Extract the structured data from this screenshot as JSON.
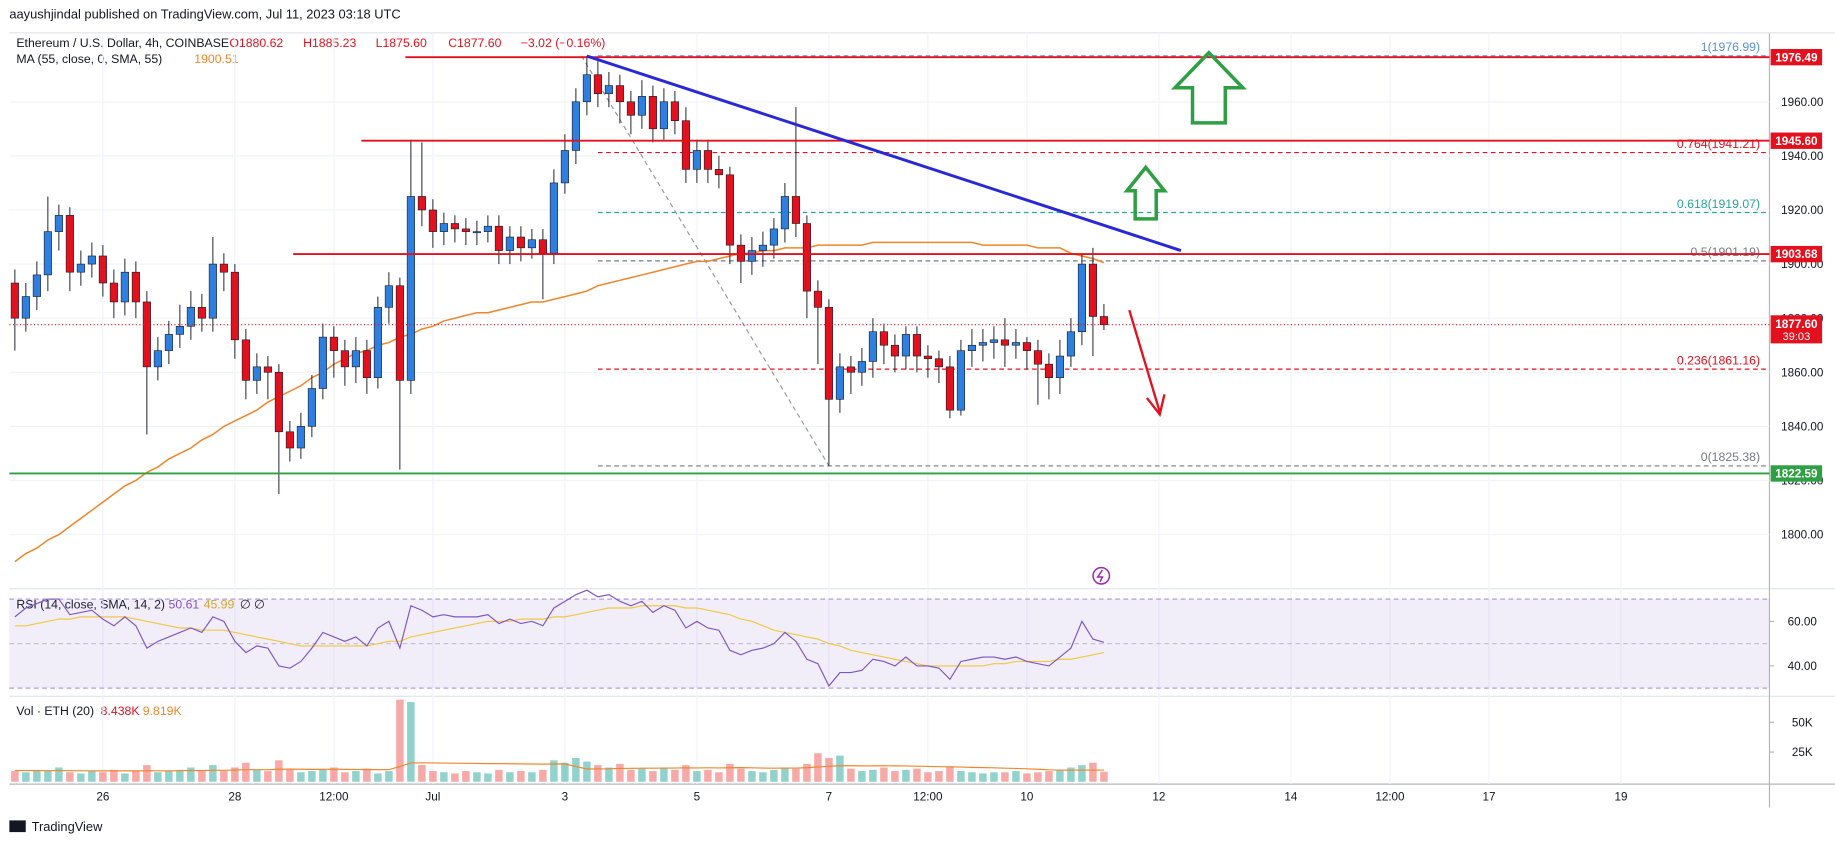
{
  "chart_data": {
    "type": "candlestick",
    "attribution": "aayushjindal published on TradingView.com, Jul 11, 2023 03:18 UTC",
    "title": "Ethereum / U.S. Dollar, 4h, COINBASE",
    "ohlc": [
      "O1880.62",
      "H1885.23",
      "L1875.60",
      "C1877.60",
      "−3.02 (−0.16%)"
    ],
    "brand": "TradingView",
    "up_color": "#2f7fe0",
    "down_color": "#e3111e",
    "xlim": [
      -0.5,
      159.5
    ],
    "xticks": [
      {
        "value": 8,
        "label": "26"
      },
      {
        "value": 20,
        "label": "28"
      },
      {
        "value": 29,
        "label": "12:00"
      },
      {
        "value": 38,
        "label": "Jul"
      },
      {
        "value": 50,
        "label": "3"
      },
      {
        "value": 62,
        "label": "5"
      },
      {
        "value": 74,
        "label": "7"
      },
      {
        "value": 83,
        "label": "12:00"
      },
      {
        "value": 92,
        "label": "10"
      },
      {
        "value": 104,
        "label": "12"
      },
      {
        "value": 116,
        "label": "14"
      },
      {
        "value": 125,
        "label": "12:00"
      },
      {
        "value": 134,
        "label": "17"
      },
      {
        "value": 146,
        "label": "19"
      }
    ],
    "ylim": [
      1780,
      1985.5
    ],
    "yticks": [
      {
        "value": 1800,
        "label": "1800.00"
      },
      {
        "value": 1820,
        "label": "1820.00"
      },
      {
        "value": 1840,
        "label": "1840.00"
      },
      {
        "value": 1860,
        "label": "1860.00"
      },
      {
        "value": 1880,
        "label": "1880.00"
      },
      {
        "value": 1900,
        "label": "1900.00"
      },
      {
        "value": 1920,
        "label": "1920.00"
      },
      {
        "value": 1940,
        "label": "1940.00"
      },
      {
        "value": 1960,
        "label": "1960.00"
      }
    ],
    "grid": true,
    "open": [
      1893,
      1880,
      1888,
      1896,
      1912,
      1918,
      1897,
      1900,
      1903,
      1893,
      1886,
      1897,
      1886,
      1862,
      1868,
      1874,
      1877,
      1884,
      1880,
      1900,
      1897,
      1872,
      1857,
      1862,
      1860,
      1838,
      1832,
      1840,
      1854,
      1873,
      1868,
      1862,
      1868,
      1858,
      1884,
      1892,
      1857,
      1925,
      1920,
      1912,
      1915,
      1913,
      1912,
      1912,
      1914,
      1905,
      1910,
      1906,
      1909,
      1904,
      1930,
      1942,
      1960,
      1970,
      1963,
      1966,
      1960,
      1955,
      1962,
      1950,
      1960,
      1953,
      1935,
      1942,
      1935,
      1933,
      1907,
      1901,
      1905,
      1907,
      1913,
      1925,
      1915,
      1890,
      1884,
      1850,
      1862,
      1860,
      1864,
      1875,
      1870,
      1866,
      1874,
      1866,
      1865,
      1862,
      1846,
      1868,
      1870,
      1871,
      1872,
      1870,
      1871,
      1868,
      1863,
      1858,
      1866,
      1875,
      1900,
      1880.62
    ],
    "high": [
      1898,
      1893,
      1901,
      1925,
      1922,
      1921,
      1905,
      1908,
      1907,
      1898,
      1902,
      1901,
      1890,
      1873,
      1879,
      1885,
      1890,
      1889,
      1910,
      1904,
      1900,
      1876,
      1867,
      1866,
      1863,
      1842,
      1845,
      1859,
      1878,
      1877,
      1872,
      1873,
      1872,
      1888,
      1897,
      1895,
      1946,
      1945,
      1924,
      1919,
      1918,
      1917,
      1916,
      1918,
      1918,
      1914,
      1914,
      1913,
      1913,
      1935,
      1948,
      1965,
      1976.99,
      1975,
      1971,
      1970,
      1964,
      1968,
      1966,
      1965,
      1964,
      1958,
      1946,
      1946,
      1940,
      1936,
      1911,
      1910,
      1912,
      1917,
      1930,
      1958,
      1918,
      1894,
      1887,
      1867,
      1866,
      1869,
      1880,
      1878,
      1874,
      1877,
      1877,
      1870,
      1868,
      1866,
      1872,
      1876,
      1876,
      1877,
      1880,
      1876,
      1873,
      1872,
      1867,
      1872,
      1880,
      1904,
      1906,
      1885.23
    ],
    "low": [
      1868,
      1875,
      1883,
      1890,
      1905,
      1890,
      1892,
      1895,
      1888,
      1880,
      1881,
      1880,
      1837,
      1857,
      1863,
      1869,
      1872,
      1875,
      1875,
      1890,
      1865,
      1850,
      1852,
      1850,
      1815,
      1827,
      1828,
      1836,
      1850,
      1858,
      1855,
      1856,
      1852,
      1854,
      1878,
      1824,
      1852,
      1914,
      1906,
      1907,
      1908,
      1907,
      1907,
      1908,
      1900,
      1900,
      1901,
      1902,
      1887,
      1900,
      1926,
      1937,
      1955,
      1958,
      1958,
      1952,
      1948,
      1950,
      1945,
      1946,
      1948,
      1930,
      1930,
      1930,
      1928,
      1900,
      1893,
      1896,
      1899,
      1902,
      1908,
      1910,
      1880,
      1863,
      1825.38,
      1845,
      1852,
      1855,
      1858,
      1863,
      1860,
      1861,
      1860,
      1858,
      1856,
      1843,
      1844,
      1862,
      1864,
      1865,
      1862,
      1865,
      1861,
      1848,
      1850,
      1852,
      1862,
      1870,
      1866,
      1875.6
    ],
    "close": [
      1880,
      1888,
      1896,
      1912,
      1918,
      1897,
      1900,
      1903,
      1893,
      1886,
      1897,
      1886,
      1862,
      1868,
      1874,
      1877,
      1884,
      1880,
      1900,
      1897,
      1872,
      1857,
      1862,
      1860,
      1838,
      1832,
      1840,
      1854,
      1873,
      1868,
      1862,
      1868,
      1858,
      1884,
      1892,
      1857,
      1925,
      1920,
      1912,
      1915,
      1913,
      1912,
      1912,
      1914,
      1905,
      1910,
      1906,
      1909,
      1904,
      1930,
      1942,
      1960,
      1970,
      1963,
      1966,
      1960,
      1955,
      1962,
      1950,
      1960,
      1953,
      1935,
      1942,
      1935,
      1933,
      1907,
      1901,
      1905,
      1907,
      1913,
      1925,
      1915,
      1890,
      1884,
      1850,
      1862,
      1860,
      1864,
      1875,
      1870,
      1866,
      1874,
      1866,
      1865,
      1862,
      1846,
      1868,
      1870,
      1871,
      1872,
      1870,
      1871,
      1868,
      1863,
      1858,
      1866,
      1875,
      1900,
      1880.62,
      1877.6
    ],
    "last_price_label": "1877.60",
    "countdown": "39:03",
    "ma": {
      "label": "MA (55, close, 0, SMA, 55)",
      "color": "#f0862c",
      "values": [
        1790,
        1793,
        1795,
        1798,
        1800,
        1803,
        1806,
        1809,
        1812,
        1815,
        1818,
        1820,
        1823,
        1825,
        1828,
        1830,
        1832,
        1835,
        1837,
        1840,
        1842,
        1844,
        1846,
        1849,
        1851,
        1853,
        1855,
        1858,
        1860,
        1863,
        1865,
        1867,
        1868,
        1870,
        1871,
        1873,
        1874,
        1876,
        1877,
        1879,
        1880,
        1881,
        1882,
        1882,
        1883,
        1884,
        1885,
        1886,
        1886,
        1887,
        1888,
        1889,
        1890,
        1892,
        1893,
        1894,
        1895,
        1896,
        1897,
        1898,
        1899,
        1900,
        1901,
        1901,
        1902,
        1903,
        1904,
        1904,
        1905,
        1905,
        1906,
        1906,
        1906,
        1907,
        1907,
        1907,
        1907,
        1907,
        1908,
        1908,
        1908,
        1908,
        1908,
        1908,
        1908,
        1908,
        1908,
        1908,
        1907,
        1907,
        1907,
        1907,
        1907,
        1906,
        1906,
        1906,
        1904,
        1903,
        1902,
        1900.51
      ]
    },
    "levels": [
      {
        "price": 1976.49,
        "label": "1976.49",
        "color": "#e3111e",
        "from": 35.5
      },
      {
        "price": 1945.6,
        "label": "1945.60",
        "color": "#e3111e",
        "from": 31.5
      },
      {
        "price": 1903.68,
        "label": "1903.68",
        "color": "#e3111e",
        "from": 25.3
      },
      {
        "price": 1822.59,
        "label": "1822.59",
        "color": "#2ea043",
        "from": -0.5
      }
    ],
    "fib_from": 53,
    "fib_levels": [
      {
        "price": 1976.99,
        "label": "1(1976.99)",
        "color": "#5b8fd4"
      },
      {
        "price": 1941.21,
        "label": "0.764(1941.21)",
        "color": "#e3111e"
      },
      {
        "price": 1919.07,
        "label": "0.618(1919.07)",
        "color": "#26a69a"
      },
      {
        "price": 1901.19,
        "label": "0.5(1901.19)",
        "color": "#787b86"
      },
      {
        "price": 1861.16,
        "label": "0.236(1861.16)",
        "color": "#e3111e"
      },
      {
        "price": 1825.38,
        "label": "0(1825.38)",
        "color": "#787b86"
      }
    ],
    "trendline": {
      "from": [
        52,
        1976.9
      ],
      "to": [
        106,
        1905
      ],
      "color": "#2828d8"
    },
    "rsi": {
      "label": "RSI (14, close, SMA, 14, 2)",
      "color": "#7e57c2",
      "ma_color": "#f2c744",
      "extra": "∅ ∅",
      "ylim": [
        26.3,
        74.7
      ],
      "yticks": [
        {
          "value": 40,
          "label": "40.00"
        },
        {
          "value": 60,
          "label": "60.00"
        }
      ],
      "bands": [
        30,
        70
      ],
      "midline": 50,
      "values": [
        62,
        66,
        68,
        70,
        70,
        63,
        64,
        65,
        61,
        58,
        62,
        58,
        48,
        51,
        53,
        55,
        57,
        55,
        62,
        60,
        51,
        46,
        49,
        48,
        40,
        39,
        42,
        48,
        55,
        53,
        51,
        53,
        49,
        57,
        60,
        48,
        67,
        65,
        62,
        63,
        62,
        62,
        62,
        63,
        59,
        61,
        59,
        60,
        58,
        66,
        69,
        72,
        74,
        71,
        72,
        69,
        67,
        69,
        64,
        67,
        65,
        57,
        60,
        57,
        56,
        47,
        45,
        47,
        48,
        50,
        55,
        51,
        43,
        41,
        31,
        37,
        37,
        38,
        43,
        42,
        40,
        44,
        40,
        40,
        39,
        34,
        42,
        43,
        44,
        44,
        43,
        44,
        42,
        41,
        40,
        44,
        48,
        60,
        52,
        50.61
      ],
      "ma_values": [
        58,
        58,
        59,
        60,
        61,
        61,
        62,
        62,
        62,
        62,
        62,
        61,
        60,
        59,
        58,
        57,
        57,
        56,
        56,
        56,
        55,
        54,
        53,
        52,
        51,
        50,
        49,
        49,
        49,
        49,
        49,
        49,
        49,
        50,
        51,
        51,
        53,
        54,
        55,
        56,
        57,
        58,
        59,
        60,
        60,
        60,
        61,
        61,
        61,
        62,
        62,
        63,
        64,
        65,
        66,
        66,
        66,
        67,
        67,
        67,
        67,
        66,
        66,
        65,
        64,
        63,
        61,
        60,
        58,
        56,
        55,
        54,
        53,
        52,
        50,
        49,
        47,
        46,
        45,
        44,
        43,
        42,
        41,
        40,
        40,
        40,
        40,
        40,
        40,
        41,
        41,
        42,
        42,
        42,
        42,
        43,
        43,
        44,
        45,
        45.99
      ]
    },
    "volume": {
      "label": "Vol · ETH (20)",
      "legend_value_label": "8.438K",
      "ma_legend_label": "9.819K",
      "ma_color": "#f0862c",
      "ylim": [
        0,
        69800
      ],
      "yticks": [
        {
          "value": 25000,
          "label": "25K"
        },
        {
          "value": 50000,
          "label": "50K"
        }
      ],
      "values": [
        9000,
        8000,
        10000,
        9000,
        12000,
        8000,
        7000,
        9000,
        8000,
        10000,
        7000,
        9000,
        14000,
        8000,
        9000,
        10000,
        12000,
        9000,
        14000,
        9000,
        12000,
        16000,
        10000,
        9000,
        18000,
        11000,
        8000,
        9000,
        10000,
        12000,
        8000,
        9000,
        11000,
        7000,
        9000,
        69000,
        67000,
        14000,
        9000,
        8000,
        7000,
        9000,
        8000,
        7000,
        10000,
        8000,
        9000,
        8000,
        10000,
        18000,
        16000,
        20000,
        17000,
        14000,
        12000,
        15000,
        10000,
        11000,
        9000,
        12000,
        10000,
        14000,
        9000,
        10000,
        8000,
        15000,
        11000,
        9000,
        8000,
        10000,
        12000,
        11000,
        15000,
        24000,
        20000,
        22000,
        11000,
        9000,
        10000,
        12000,
        9000,
        10000,
        11000,
        8000,
        9000,
        13000,
        9000,
        8000,
        7000,
        8000,
        8000,
        9000,
        7000,
        8000,
        9000,
        10000,
        12000,
        14000,
        16000,
        8438
      ],
      "ma_values": [
        9500,
        9400,
        9400,
        9300,
        9400,
        9300,
        9200,
        9200,
        9100,
        9200,
        9100,
        9100,
        9300,
        9200,
        9200,
        9300,
        9400,
        9400,
        9600,
        9600,
        9800,
        10100,
        10100,
        10100,
        10500,
        10600,
        10500,
        10400,
        10400,
        10500,
        10400,
        10300,
        10300,
        10200,
        10100,
        12900,
        15800,
        15900,
        15800,
        15700,
        15600,
        15500,
        15400,
        15200,
        15200,
        15100,
        15000,
        14900,
        14800,
        14900,
        15000,
        12900,
        10700,
        10800,
        10900,
        11200,
        11300,
        11400,
        11400,
        11500,
        11500,
        11700,
        11600,
        11700,
        11600,
        11800,
        11900,
        11700,
        11500,
        11400,
        11500,
        11500,
        11800,
        12500,
        13000,
        13500,
        13500,
        13400,
        13400,
        13500,
        13400,
        13300,
        13100,
        12900,
        12700,
        12600,
        12400,
        12100,
        11900,
        11700,
        11400,
        11200,
        10900,
        10500,
        10000,
        9800,
        9700,
        9800,
        9800,
        9819
      ]
    }
  }
}
